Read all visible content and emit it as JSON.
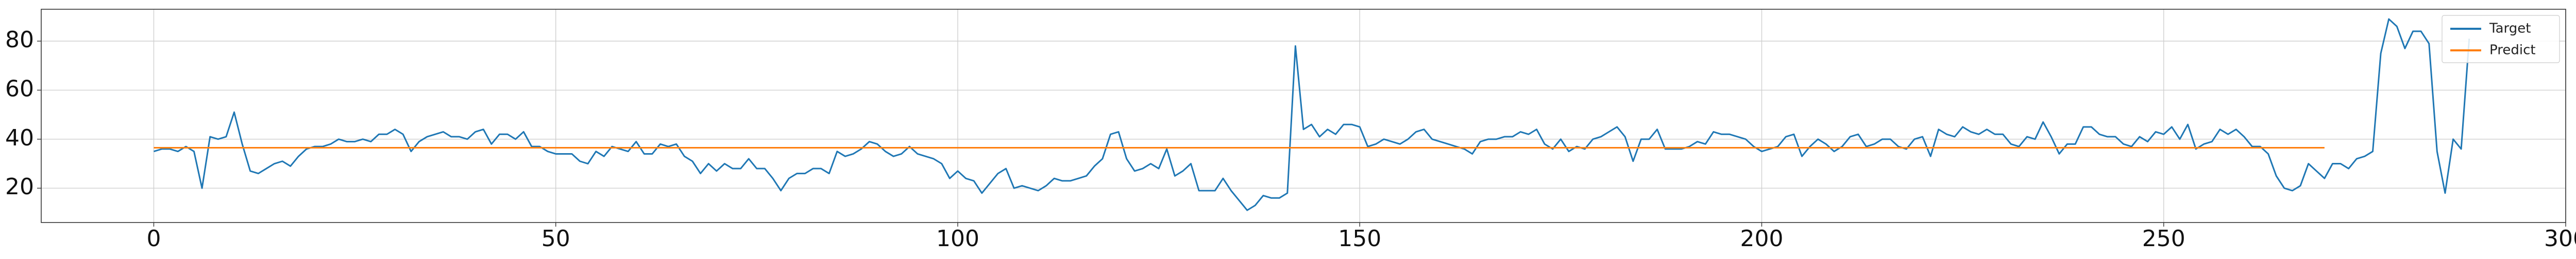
{
  "chart_data": {
    "type": "line",
    "title": "",
    "xlabel": "",
    "ylabel": "",
    "xlim": [
      -14,
      300
    ],
    "ylim": [
      6,
      93
    ],
    "xticks": [
      0,
      50,
      100,
      150,
      200,
      250,
      300
    ],
    "yticks": [
      20,
      40,
      60,
      80
    ],
    "grid": true,
    "legend_position": "top-right",
    "series": [
      {
        "name": "Target",
        "color": "#1f77b4",
        "values": [
          35,
          36,
          36,
          35,
          37,
          35,
          20,
          41,
          40,
          41,
          51,
          38,
          27,
          26,
          28,
          30,
          31,
          29,
          33,
          36,
          37,
          37,
          38,
          40,
          39,
          39,
          40,
          39,
          42,
          42,
          44,
          42,
          35,
          39,
          41,
          42,
          43,
          41,
          41,
          40,
          43,
          44,
          38,
          42,
          42,
          40,
          43,
          37,
          37,
          35,
          34,
          34,
          34,
          31,
          30,
          35,
          33,
          37,
          36,
          35,
          39,
          34,
          34,
          38,
          37,
          38,
          33,
          31,
          26,
          30,
          27,
          30,
          28,
          28,
          32,
          28,
          28,
          24,
          19,
          24,
          26,
          26,
          28,
          28,
          26,
          35,
          33,
          34,
          36,
          39,
          38,
          35,
          33,
          34,
          37,
          34,
          33,
          32,
          30,
          24,
          27,
          24,
          23,
          18,
          22,
          26,
          28,
          20,
          21,
          20,
          19,
          21,
          24,
          23,
          23,
          24,
          25,
          29,
          32,
          42,
          43,
          32,
          27,
          28,
          30,
          28,
          36,
          25,
          27,
          30,
          19,
          19,
          19,
          24,
          19,
          15,
          11,
          13,
          17,
          16,
          16,
          18,
          78,
          44,
          46,
          41,
          44,
          42,
          46,
          46,
          45,
          37,
          38,
          40,
          39,
          38,
          40,
          43,
          44,
          40,
          39,
          38,
          37,
          36,
          34,
          39,
          40,
          40,
          41,
          41,
          43,
          42,
          44,
          38,
          36,
          40,
          35,
          37,
          36,
          40,
          41,
          43,
          45,
          41,
          31,
          40,
          40,
          44,
          36,
          36,
          36,
          37,
          39,
          38,
          43,
          42,
          42,
          41,
          40,
          37,
          35,
          36,
          37,
          41,
          42,
          33,
          37,
          40,
          38,
          35,
          37,
          41,
          42,
          37,
          38,
          40,
          40,
          37,
          36,
          40,
          41,
          33,
          44,
          42,
          41,
          45,
          43,
          42,
          44,
          42,
          42,
          38,
          37,
          41,
          40,
          47,
          41,
          34,
          38,
          38,
          45,
          45,
          42,
          41,
          41,
          38,
          37,
          41,
          39,
          43,
          42,
          45,
          40,
          46,
          36,
          38,
          39,
          44,
          42,
          44,
          41,
          37,
          37,
          34,
          25,
          20,
          19,
          21,
          30,
          27,
          24,
          30,
          30,
          28,
          32,
          33,
          35,
          75,
          89,
          86,
          77,
          84,
          84,
          79,
          35,
          18,
          40,
          36,
          81
        ]
      },
      {
        "name": "Predict",
        "color": "#ff7f0e",
        "values": [
          36.5,
          36.5,
          36.5,
          36.5,
          36.5,
          36.5,
          36.5,
          36.5,
          36.5,
          36.5,
          36.5,
          36.5,
          36.5,
          36.5,
          36.5,
          36.5,
          36.5,
          36.5,
          36.5,
          36.5,
          36.5,
          36.5,
          36.5,
          36.5,
          36.5,
          36.5,
          36.5,
          36.5,
          36.5,
          36.5,
          36.5,
          36.5,
          36.5,
          36.5,
          36.5,
          36.5,
          36.5,
          36.5,
          36.5,
          36.5,
          36.5,
          36.5,
          36.5,
          36.5,
          36.5,
          36.5,
          36.5,
          36.5,
          36.5,
          36.5,
          36.5,
          36.5,
          36.5,
          36.5,
          36.5,
          36.5,
          36.5,
          36.5,
          36.5,
          36.5,
          36.5,
          36.5,
          36.5,
          36.5,
          36.5,
          36.5,
          36.5,
          36.5,
          36.5,
          36.5,
          36.5,
          36.5,
          36.5,
          36.5,
          36.5,
          36.5,
          36.5,
          36.5,
          36.5,
          36.5,
          36.5,
          36.5,
          36.5,
          36.5,
          36.5,
          36.5,
          36.5,
          36.5,
          36.5,
          36.5,
          36.5,
          36.5,
          36.5,
          36.5,
          36.5,
          36.5,
          36.5,
          36.5,
          36.5,
          36.5,
          36.5,
          36.5,
          36.5,
          36.5,
          36.5,
          36.5,
          36.5,
          36.5,
          36.5,
          36.5,
          36.5,
          36.5,
          36.5,
          36.5,
          36.5,
          36.5,
          36.5,
          36.5,
          36.5,
          36.5,
          36.5,
          36.5,
          36.5,
          36.5,
          36.5,
          36.5,
          36.5,
          36.5,
          36.5,
          36.5,
          36.5,
          36.5,
          36.5,
          36.5,
          36.5,
          36.5,
          36.5,
          36.5,
          36.5,
          36.5,
          36.5,
          36.5,
          36.5,
          36.5,
          36.5,
          36.5,
          36.5,
          36.5,
          36.5,
          36.5,
          36.5,
          36.5,
          36.5,
          36.5,
          36.5,
          36.5,
          36.5,
          36.5,
          36.5,
          36.5,
          36.5,
          36.5,
          36.5,
          36.5,
          36.5,
          36.5,
          36.5,
          36.5,
          36.5,
          36.5,
          36.5,
          36.5,
          36.5,
          36.5,
          36.5,
          36.5,
          36.5,
          36.5,
          36.5,
          36.5,
          36.5,
          36.5,
          36.5,
          36.5,
          36.5,
          36.5,
          36.5,
          36.5,
          36.5,
          36.5,
          36.5,
          36.5,
          36.5,
          36.5,
          36.5,
          36.5,
          36.5,
          36.5,
          36.5,
          36.5,
          36.5,
          36.5,
          36.5,
          36.5,
          36.5,
          36.5,
          36.5,
          36.5,
          36.5,
          36.5,
          36.5,
          36.5,
          36.5,
          36.5,
          36.5,
          36.5,
          36.5,
          36.5,
          36.5,
          36.5,
          36.5,
          36.5,
          36.5,
          36.5,
          36.5,
          36.5,
          36.5,
          36.5,
          36.5,
          36.5,
          36.5,
          36.5,
          36.5,
          36.5,
          36.5,
          36.5,
          36.5,
          36.5,
          36.5,
          36.5,
          36.5,
          36.5,
          36.5,
          36.5,
          36.5,
          36.5,
          36.5,
          36.5,
          36.5,
          36.5,
          36.5,
          36.5,
          36.5,
          36.5,
          36.5,
          36.5,
          36.5,
          36.5,
          36.5,
          36.5,
          36.5,
          36.5,
          36.5,
          36.5,
          36.5,
          36.5,
          36.5,
          36.5,
          36.5,
          36.5,
          36.5
        ]
      }
    ]
  }
}
